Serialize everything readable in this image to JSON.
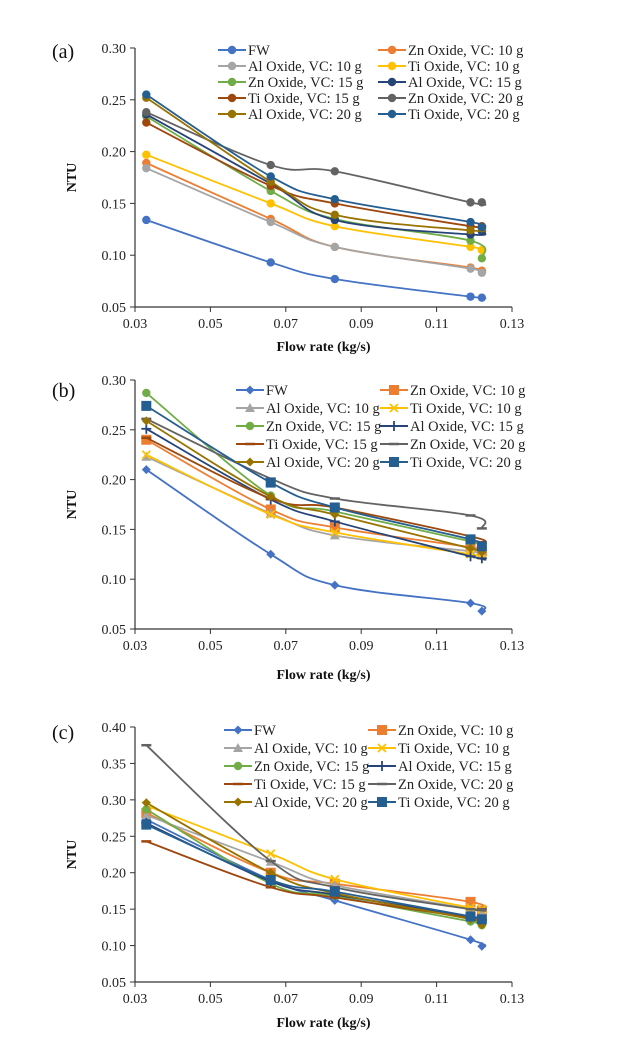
{
  "chart_data": [
    {
      "panel": "(a)",
      "type": "line",
      "marker_style": "circle",
      "xlabel": "Flow rate (kg/s)",
      "ylabel": "NTU",
      "xlim": [
        0.03,
        0.13
      ],
      "ylim": [
        0.05,
        0.3
      ],
      "xticks": [
        "0.03",
        "0.05",
        "0.07",
        "0.09",
        "0.11",
        "0.13"
      ],
      "yticks": [
        "0.05",
        "0.10",
        "0.15",
        "0.20",
        "0.25",
        "0.30"
      ],
      "legend_position": "top-right",
      "x": [
        0.033,
        0.066,
        0.083,
        0.119,
        0.122
      ],
      "series": [
        {
          "name": "FW",
          "color": "#4472C4",
          "values": [
            0.134,
            0.093,
            0.077,
            0.06,
            0.059
          ]
        },
        {
          "name": "Zn Oxide, VC: 10 g",
          "color": "#ED7D31",
          "values": [
            0.189,
            0.135,
            0.108,
            0.088,
            0.085
          ]
        },
        {
          "name": "Al Oxide, VC: 10 g",
          "color": "#A5A5A5",
          "values": [
            0.184,
            0.132,
            0.108,
            0.087,
            0.083
          ]
        },
        {
          "name": "Ti Oxide, VC: 10 g",
          "color": "#FFC000",
          "values": [
            0.197,
            0.15,
            0.128,
            0.108,
            0.105
          ]
        },
        {
          "name": "Zn Oxide, VC: 15 g",
          "color": "#70AD47",
          "values": [
            0.234,
            0.162,
            0.135,
            0.114,
            0.097
          ]
        },
        {
          "name": "Al Oxide, VC: 15 g",
          "color": "#264478",
          "values": [
            0.236,
            0.169,
            0.134,
            0.12,
            0.123
          ]
        },
        {
          "name": "Ti Oxide, VC: 15 g",
          "color": "#9E480E",
          "values": [
            0.228,
            0.167,
            0.15,
            0.128,
            0.128
          ]
        },
        {
          "name": "Zn Oxide, VC: 20 g",
          "color": "#636363",
          "values": [
            0.238,
            0.187,
            0.181,
            0.151,
            0.151
          ]
        },
        {
          "name": "Al Oxide, VC: 20 g",
          "color": "#997300",
          "values": [
            0.252,
            0.171,
            0.139,
            0.124,
            0.126
          ]
        },
        {
          "name": "Ti Oxide, VC: 20 g",
          "color": "#255E91",
          "values": [
            0.255,
            0.176,
            0.154,
            0.132,
            0.127
          ]
        }
      ]
    },
    {
      "panel": "(b)",
      "type": "line",
      "marker_style": "mixed",
      "xlabel": "Flow rate (kg/s)",
      "ylabel": "NTU",
      "xlim": [
        0.03,
        0.13
      ],
      "ylim": [
        0.05,
        0.3
      ],
      "xticks": [
        "0.03",
        "0.05",
        "0.07",
        "0.09",
        "0.11",
        "0.13"
      ],
      "yticks": [
        "0.05",
        "0.10",
        "0.15",
        "0.20",
        "0.25",
        "0.30"
      ],
      "legend_position": "top-right",
      "x": [
        0.033,
        0.066,
        0.083,
        0.119,
        0.122
      ],
      "series": [
        {
          "name": "FW",
          "color": "#4472C4",
          "marker": "diamond",
          "values": [
            0.21,
            0.125,
            0.094,
            0.076,
            0.068
          ]
        },
        {
          "name": "Zn Oxide, VC: 10 g",
          "color": "#ED7D31",
          "marker": "square",
          "values": [
            0.24,
            0.17,
            0.152,
            0.132,
            0.128
          ]
        },
        {
          "name": "Al Oxide, VC: 10 g",
          "color": "#A5A5A5",
          "marker": "triangle",
          "values": [
            0.223,
            0.166,
            0.144,
            0.128,
            0.125
          ]
        },
        {
          "name": "Ti Oxide, VC: 10 g",
          "color": "#FFC000",
          "marker": "x",
          "values": [
            0.225,
            0.165,
            0.147,
            0.125,
            0.124
          ]
        },
        {
          "name": "Zn Oxide, VC: 15 g",
          "color": "#70AD47",
          "marker": "circle",
          "values": [
            0.287,
            0.184,
            0.168,
            0.138,
            0.134
          ]
        },
        {
          "name": "Al Oxide, VC: 15 g",
          "color": "#264478",
          "marker": "plus",
          "values": [
            0.251,
            0.18,
            0.158,
            0.123,
            0.121
          ]
        },
        {
          "name": "Ti Oxide, VC: 15 g",
          "color": "#9E480E",
          "marker": "dash",
          "values": [
            0.242,
            0.181,
            0.172,
            0.143,
            0.137
          ]
        },
        {
          "name": "Zn Oxide, VC: 20 g",
          "color": "#636363",
          "marker": "dash",
          "values": [
            0.261,
            0.201,
            0.181,
            0.164,
            0.151
          ]
        },
        {
          "name": "Al Oxide, VC: 20 g",
          "color": "#997300",
          "marker": "diamond",
          "values": [
            0.259,
            0.183,
            0.165,
            0.131,
            0.127
          ]
        },
        {
          "name": "Ti Oxide, VC: 20 g",
          "color": "#255E91",
          "marker": "square",
          "values": [
            0.274,
            0.197,
            0.172,
            0.14,
            0.133
          ]
        }
      ]
    },
    {
      "panel": "(c)",
      "type": "line",
      "marker_style": "mixed",
      "xlabel": "Flow rate (kg/s)",
      "ylabel": "NTU",
      "xlim": [
        0.03,
        0.13
      ],
      "ylim": [
        0.05,
        0.4
      ],
      "xticks": [
        "0.03",
        "0.05",
        "0.07",
        "0.09",
        "0.11",
        "0.13"
      ],
      "yticks": [
        "0.05",
        "0.10",
        "0.15",
        "0.20",
        "0.25",
        "0.30",
        "0.35",
        "0.40"
      ],
      "legend_position": "top-right",
      "x": [
        0.033,
        0.066,
        0.083,
        0.119,
        0.122
      ],
      "series": [
        {
          "name": "FW",
          "color": "#4472C4",
          "marker": "diamond",
          "values": [
            0.273,
            0.19,
            0.162,
            0.108,
            0.099
          ]
        },
        {
          "name": "Zn Oxide, VC: 10 g",
          "color": "#ED7D31",
          "marker": "square",
          "values": [
            0.282,
            0.2,
            0.185,
            0.16,
            0.148
          ]
        },
        {
          "name": "Al Oxide, VC: 10 g",
          "color": "#A5A5A5",
          "marker": "triangle",
          "values": [
            0.279,
            0.215,
            0.183,
            0.15,
            0.142
          ]
        },
        {
          "name": "Ti Oxide, VC: 10 g",
          "color": "#FFC000",
          "marker": "x",
          "values": [
            0.292,
            0.226,
            0.191,
            0.152,
            0.15
          ]
        },
        {
          "name": "Zn Oxide, VC: 15 g",
          "color": "#70AD47",
          "marker": "circle",
          "values": [
            0.287,
            0.185,
            0.168,
            0.133,
            0.128
          ]
        },
        {
          "name": "Al Oxide, VC: 15 g",
          "color": "#264478",
          "marker": "plus",
          "values": [
            0.268,
            0.188,
            0.17,
            0.14,
            0.135
          ]
        },
        {
          "name": "Ti Oxide, VC: 15 g",
          "color": "#9E480E",
          "marker": "dash",
          "values": [
            0.243,
            0.18,
            0.166,
            0.138,
            0.136
          ]
        },
        {
          "name": "Zn Oxide, VC: 20 g",
          "color": "#636363",
          "marker": "dash",
          "values": [
            0.375,
            0.216,
            0.18,
            0.15,
            0.15
          ]
        },
        {
          "name": "Al Oxide, VC: 20 g",
          "color": "#997300",
          "marker": "diamond",
          "values": [
            0.296,
            0.2,
            0.172,
            0.136,
            0.128
          ]
        },
        {
          "name": "Ti Oxide, VC: 20 g",
          "color": "#255E91",
          "marker": "square",
          "values": [
            0.266,
            0.19,
            0.174,
            0.14,
            0.136
          ]
        }
      ]
    }
  ]
}
